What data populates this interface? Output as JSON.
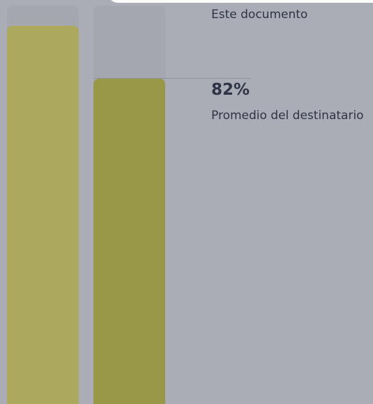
{
  "chart_data": {
    "type": "bar",
    "categories": [
      "Este documento",
      "Promedio del destinatario"
    ],
    "values": [
      95,
      82
    ],
    "ylim": [
      0,
      100
    ],
    "unit": "%",
    "value_label": "82%",
    "colors": [
      "#aca85e",
      "#999848"
    ],
    "track_color": "#a4a7ad",
    "background": "#aaadb5"
  },
  "legend": {
    "this_document": "Este documento",
    "recipient_average_value": "82%",
    "recipient_average": "Promedio del destinatario"
  }
}
